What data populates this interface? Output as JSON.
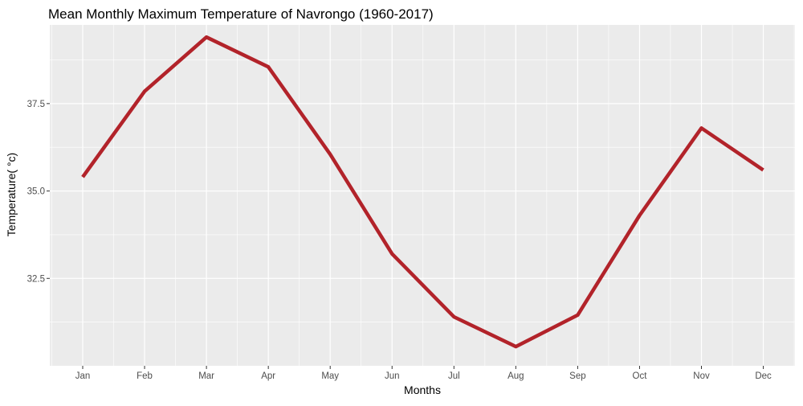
{
  "chart_data": {
    "type": "line",
    "title": "Mean Monthly Maximum Temperature  of Navrongo (1960-2017)",
    "xlabel": "Months",
    "ylabel": "Temperature( °c)",
    "categories": [
      "Jan",
      "Feb",
      "Mar",
      "Apr",
      "May",
      "Jun",
      "Jul",
      "Aug",
      "Sep",
      "Oct",
      "Nov",
      "Dec"
    ],
    "series": [
      {
        "values": [
          35.4,
          37.85,
          39.4,
          38.55,
          36.05,
          33.2,
          31.4,
          30.55,
          31.45,
          34.3,
          36.8,
          35.6
        ],
        "color": "#b2232a"
      }
    ],
    "ylim": [
      30.0,
      39.75
    ],
    "yticks": [
      32.5,
      35.0,
      37.5
    ],
    "ytick_labels": [
      "32.5",
      "35.0",
      "37.5"
    ],
    "grid": true,
    "panel_background": "#ebebeb",
    "grid_color": "#ffffff"
  }
}
